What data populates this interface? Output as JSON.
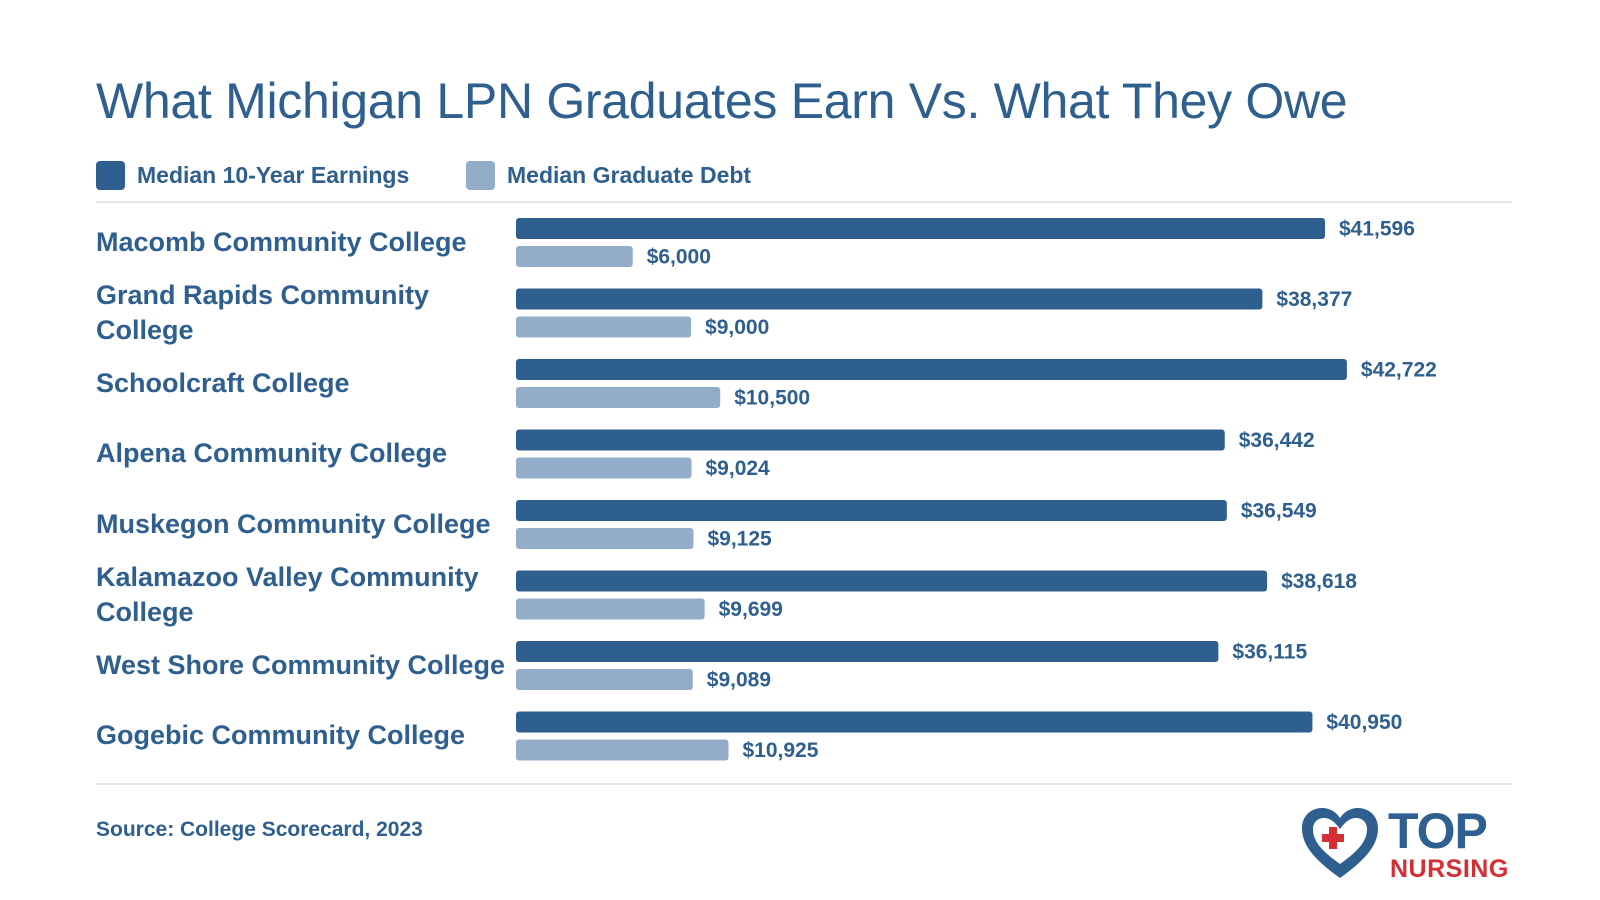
{
  "title": "What Michigan LPN Graduates Earn Vs. What They Owe",
  "legend": [
    {
      "label": "Median 10-Year Earnings",
      "color": "#2e5f8e"
    },
    {
      "label": "Median Graduate Debt",
      "color": "#93adc8"
    }
  ],
  "chart_data": {
    "type": "bar",
    "orientation": "horizontal",
    "title": "What Michigan LPN Graduates Earn Vs. What They Owe",
    "categories": [
      "Macomb Community College",
      "Grand Rapids Community College",
      "Schoolcraft College",
      "Alpena Community College",
      "Muskegon Community College",
      "Kalamazoo Valley Community College",
      "West Shore Community College",
      "Gogebic Community College"
    ],
    "series": [
      {
        "name": "Median 10-Year Earnings",
        "color": "#2e5f8e",
        "values": [
          41596,
          38377,
          42722,
          36442,
          36549,
          38618,
          36115,
          40950
        ],
        "labels": [
          "$41,596",
          "$38,377",
          "$42,722",
          "$36,442",
          "$36,549",
          "$38,618",
          "$36,115",
          "$40,950"
        ]
      },
      {
        "name": "Median Graduate Debt",
        "color": "#93adc8",
        "values": [
          6000,
          9000,
          10500,
          9024,
          9125,
          9699,
          9089,
          10925
        ],
        "labels": [
          "$6,000",
          "$9,000",
          "$10,500",
          "$9,024",
          "$9,125",
          "$9,699",
          "$9,089",
          "$10,925"
        ]
      }
    ],
    "grid": false,
    "legend_position": "top-left"
  },
  "source": "Source: College Scorecard, 2023",
  "logo": {
    "top": "TOP",
    "bottom": "NURSING"
  }
}
